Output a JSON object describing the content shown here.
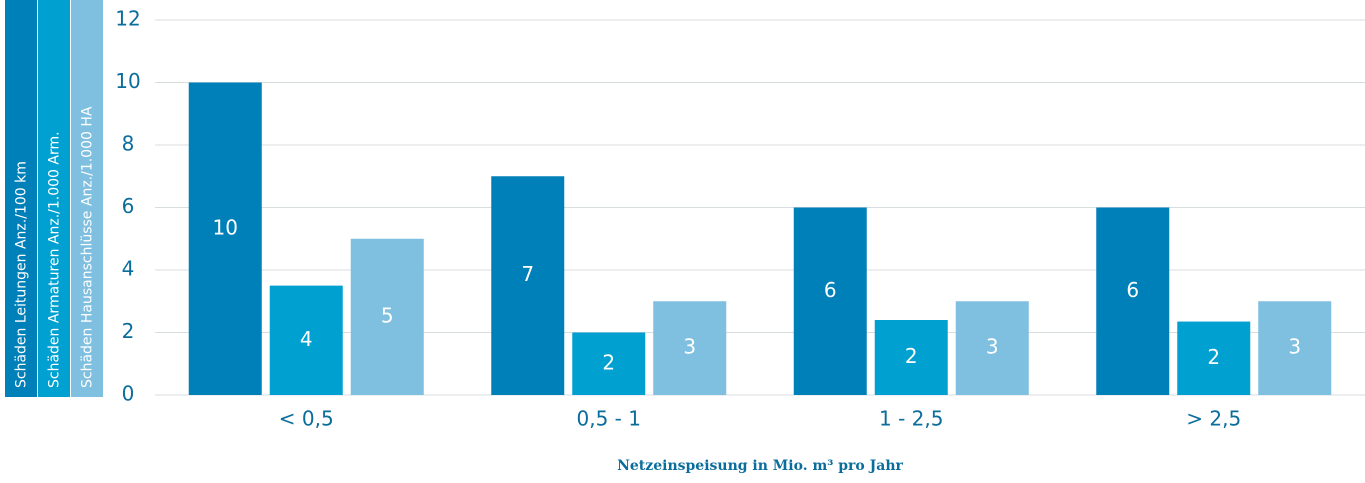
{
  "chart_data": {
    "type": "bar",
    "x_label": "Netzeinspeisung in Mio. m³ pro Jahr",
    "categories": [
      "< 0,5",
      "0,5 - 1",
      "1 - 2,5",
      "> 2,5"
    ],
    "series": [
      {
        "name": "Schäden Leitungen Anz./100 km",
        "color": "#0080b8",
        "values": [
          10,
          7,
          6,
          6
        ]
      },
      {
        "name": "Schäden Armaturen Anz./1.000 Arm.",
        "color": "#00a0d0",
        "values": [
          3.5,
          2,
          2.4,
          2.35
        ],
        "value_labels": [
          "4",
          "2",
          "2",
          "2"
        ]
      },
      {
        "name": "Schäden Hausanschlüsse Anz./1.000 HA",
        "color": "#7fbfe0",
        "values": [
          5,
          3,
          3,
          3
        ]
      }
    ],
    "ylim": [
      0,
      12
    ],
    "yticks": [
      0,
      2,
      4,
      6,
      8,
      10,
      12
    ],
    "grid": true
  }
}
